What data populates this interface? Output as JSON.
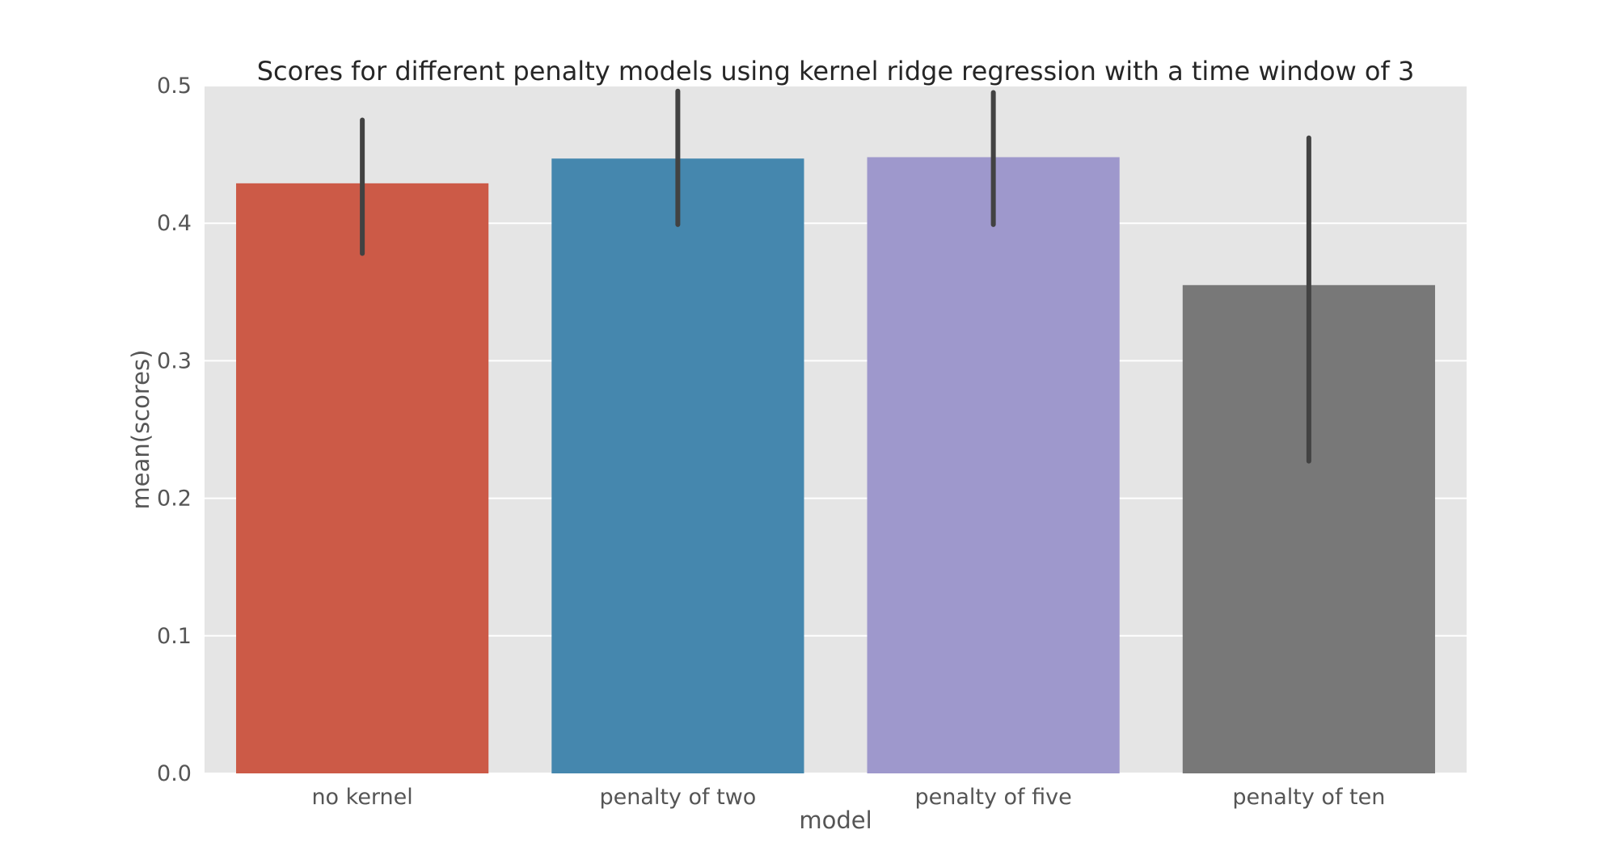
{
  "chart_data": {
    "type": "bar",
    "title": "Scores for different penalty models using kernel ridge regression with a time window of 3",
    "xlabel": "model",
    "ylabel": "mean(scores)",
    "ylim": [
      0,
      0.5
    ],
    "yticks": [
      "0.0",
      "0.1",
      "0.2",
      "0.3",
      "0.4",
      "0.5"
    ],
    "grid": true,
    "categories": [
      "no kernel",
      "penalty of two",
      "penalty of five",
      "penalty of ten"
    ],
    "values": [
      0.429,
      0.447,
      0.448,
      0.355
    ],
    "error_low": [
      0.378,
      0.399,
      0.399,
      0.227
    ],
    "error_high": [
      0.475,
      0.496,
      0.495,
      0.462
    ],
    "colors": [
      "#cc5a47",
      "#4587ae",
      "#9e98cc",
      "#787878"
    ],
    "errorbar_color": "#424242",
    "background_color": "#e5e5e5",
    "grid_color": "#ffffff"
  }
}
